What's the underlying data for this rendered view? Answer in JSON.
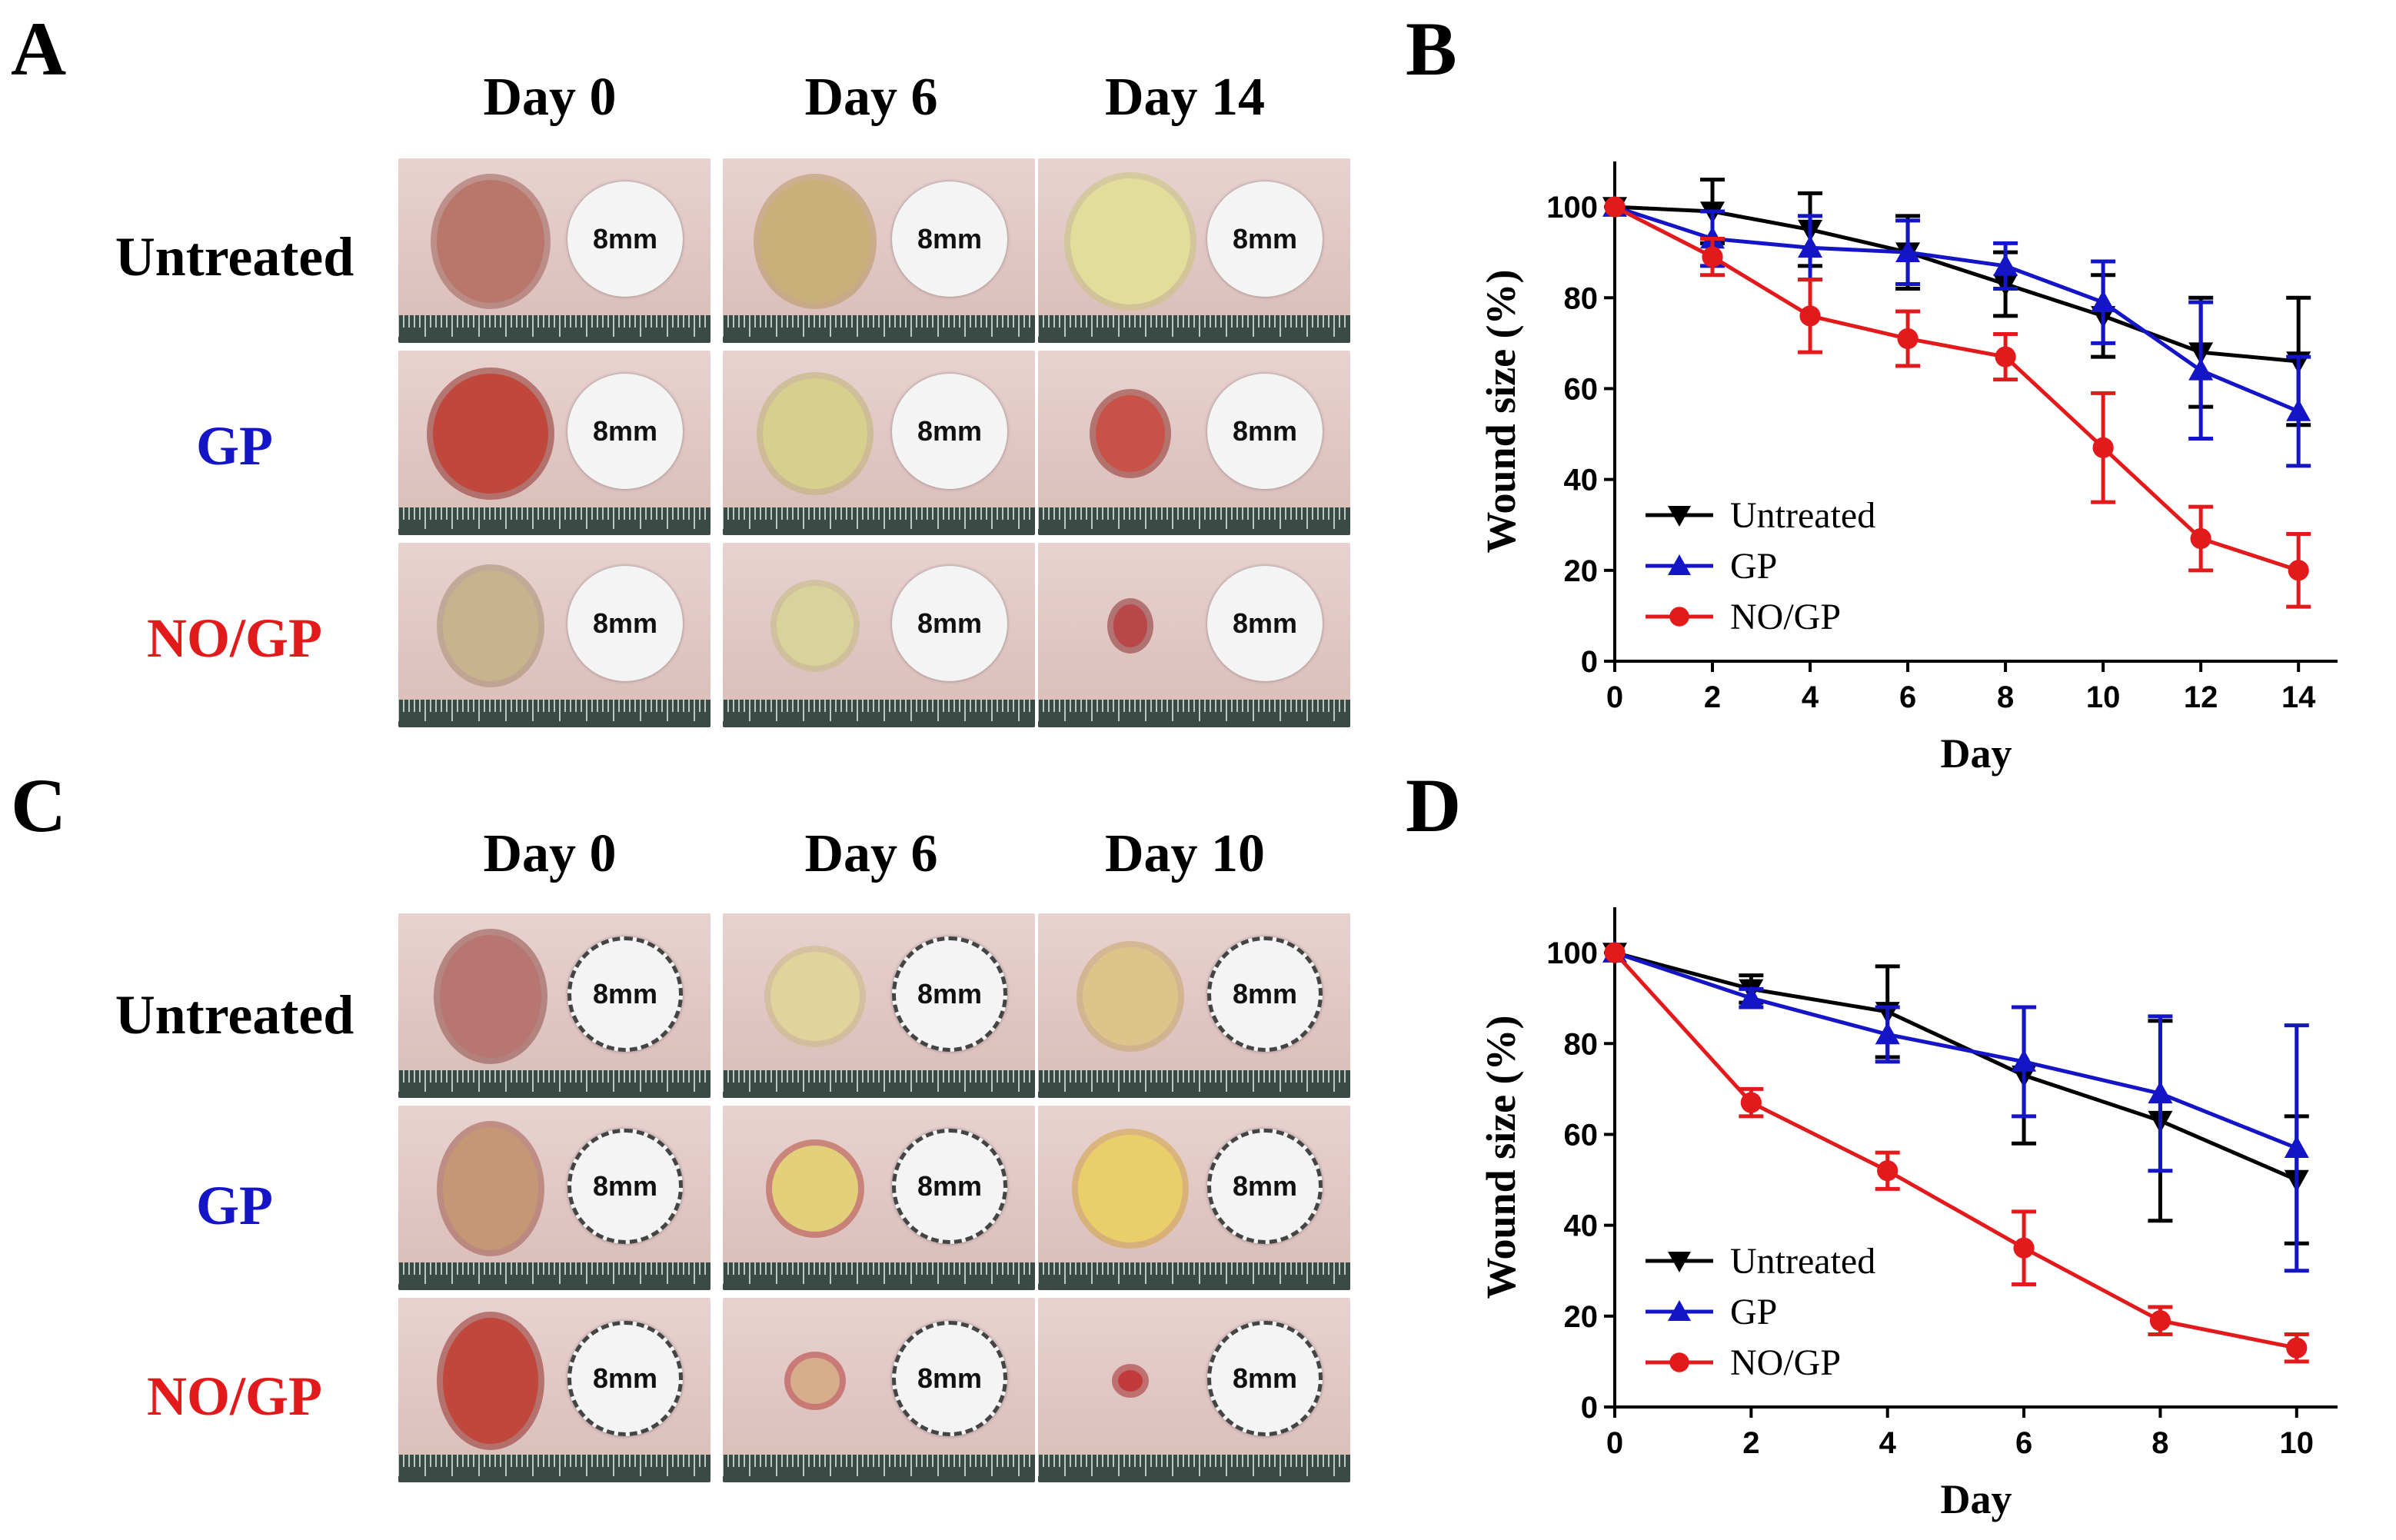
{
  "panels": {
    "A": {
      "letter": "A",
      "days": [
        "Day 0",
        "Day 6",
        "Day 14"
      ],
      "rows": [
        {
          "label": "Untreated",
          "color": "#000000"
        },
        {
          "label": "GP",
          "color": "#1515c8"
        },
        {
          "label": "NO/GP",
          "color": "#e31a1c"
        }
      ],
      "scale_tag": "8mm"
    },
    "C": {
      "letter": "C",
      "days": [
        "Day 0",
        "Day 6",
        "Day 10"
      ],
      "rows": [
        {
          "label": "Untreated",
          "color": "#000000"
        },
        {
          "label": "GP",
          "color": "#1515c8"
        },
        {
          "label": "NO/GP",
          "color": "#e31a1c"
        }
      ],
      "scale_tag": "8mm"
    },
    "B": {
      "letter": "B"
    },
    "D": {
      "letter": "D"
    }
  },
  "chart_data": [
    {
      "panel": "B",
      "type": "line",
      "xlabel": "Day",
      "ylabel": "Wound size (%)",
      "x": [
        0,
        2,
        4,
        6,
        8,
        10,
        12,
        14
      ],
      "xticks": [
        0,
        2,
        4,
        6,
        8,
        10,
        12,
        14
      ],
      "yticks": [
        0,
        20,
        40,
        60,
        80,
        100
      ],
      "xlim": [
        0,
        14.8
      ],
      "ylim": [
        0,
        110
      ],
      "legend_position": "bottom-left",
      "series": [
        {
          "name": "Untreated",
          "color": "#000000",
          "marker": "triangle-down",
          "values": [
            100,
            99,
            95,
            90,
            83,
            76,
            68,
            66
          ],
          "errors": [
            0,
            7,
            8,
            8,
            7,
            9,
            12,
            14
          ]
        },
        {
          "name": "GP",
          "color": "#1515c8",
          "marker": "triangle-up",
          "values": [
            100,
            93,
            91,
            90,
            87,
            79,
            64,
            55
          ],
          "errors": [
            0,
            6,
            7,
            7,
            5,
            9,
            15,
            12
          ]
        },
        {
          "name": "NO/GP",
          "color": "#e31a1c",
          "marker": "circle",
          "values": [
            100,
            89,
            76,
            71,
            67,
            47,
            27,
            20
          ],
          "errors": [
            0,
            4,
            8,
            6,
            5,
            12,
            7,
            8
          ]
        }
      ]
    },
    {
      "panel": "D",
      "type": "line",
      "xlabel": "Day",
      "ylabel": "Wound size (%)",
      "x": [
        0,
        2,
        4,
        6,
        8,
        10
      ],
      "xticks": [
        0,
        2,
        4,
        6,
        8,
        10
      ],
      "yticks": [
        0,
        20,
        40,
        60,
        80,
        100
      ],
      "xlim": [
        0,
        10.6
      ],
      "ylim": [
        0,
        110
      ],
      "legend_position": "bottom-left",
      "series": [
        {
          "name": "Untreated",
          "color": "#000000",
          "marker": "triangle-down",
          "values": [
            100,
            92,
            87,
            73,
            63,
            50
          ],
          "errors": [
            0,
            3,
            10,
            15,
            22,
            14
          ]
        },
        {
          "name": "GP",
          "color": "#1515c8",
          "marker": "triangle-up",
          "values": [
            100,
            90,
            82,
            76,
            69,
            57
          ],
          "errors": [
            0,
            2,
            6,
            12,
            17,
            27
          ]
        },
        {
          "name": "NO/GP",
          "color": "#e31a1c",
          "marker": "circle",
          "values": [
            100,
            67,
            52,
            35,
            19,
            13
          ],
          "errors": [
            0,
            3,
            4,
            8,
            3,
            3
          ]
        }
      ]
    }
  ]
}
